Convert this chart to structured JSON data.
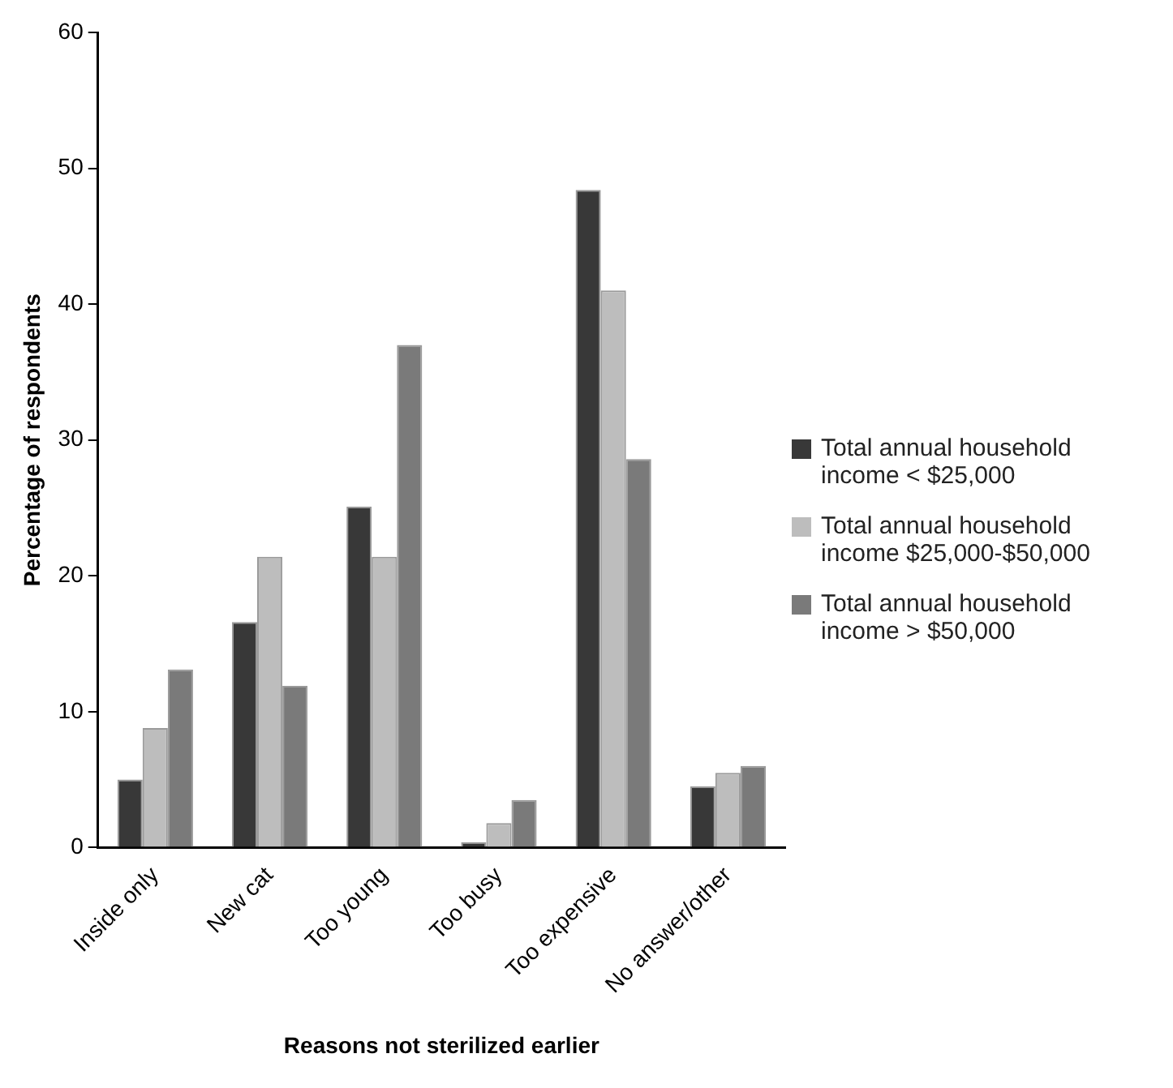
{
  "chart_data": {
    "type": "bar",
    "xlabel": "Reasons not sterilized earlier",
    "ylabel": "Percentage of respondents",
    "categories": [
      "Inside only",
      "New cat",
      "Too young",
      "Too busy",
      "Too expensive",
      "No answer/other"
    ],
    "series": [
      {
        "name": "Total annual household income < $25,000",
        "color": "#383838",
        "values": [
          5.0,
          16.6,
          25.1,
          0.4,
          48.4,
          4.5
        ]
      },
      {
        "name": "Total annual household income $25,000-$50,000",
        "color": "#bdbdbd",
        "values": [
          8.8,
          21.4,
          21.4,
          1.8,
          41.0,
          5.5
        ]
      },
      {
        "name": "Total annual household income > $50,000",
        "color": "#7a7a7a",
        "values": [
          13.1,
          11.9,
          37.0,
          3.5,
          28.6,
          6.0
        ]
      }
    ],
    "ylim": [
      0,
      60
    ],
    "yticks": [
      0,
      10,
      20,
      30,
      40,
      50,
      60
    ],
    "grid": false,
    "legend": "right"
  }
}
